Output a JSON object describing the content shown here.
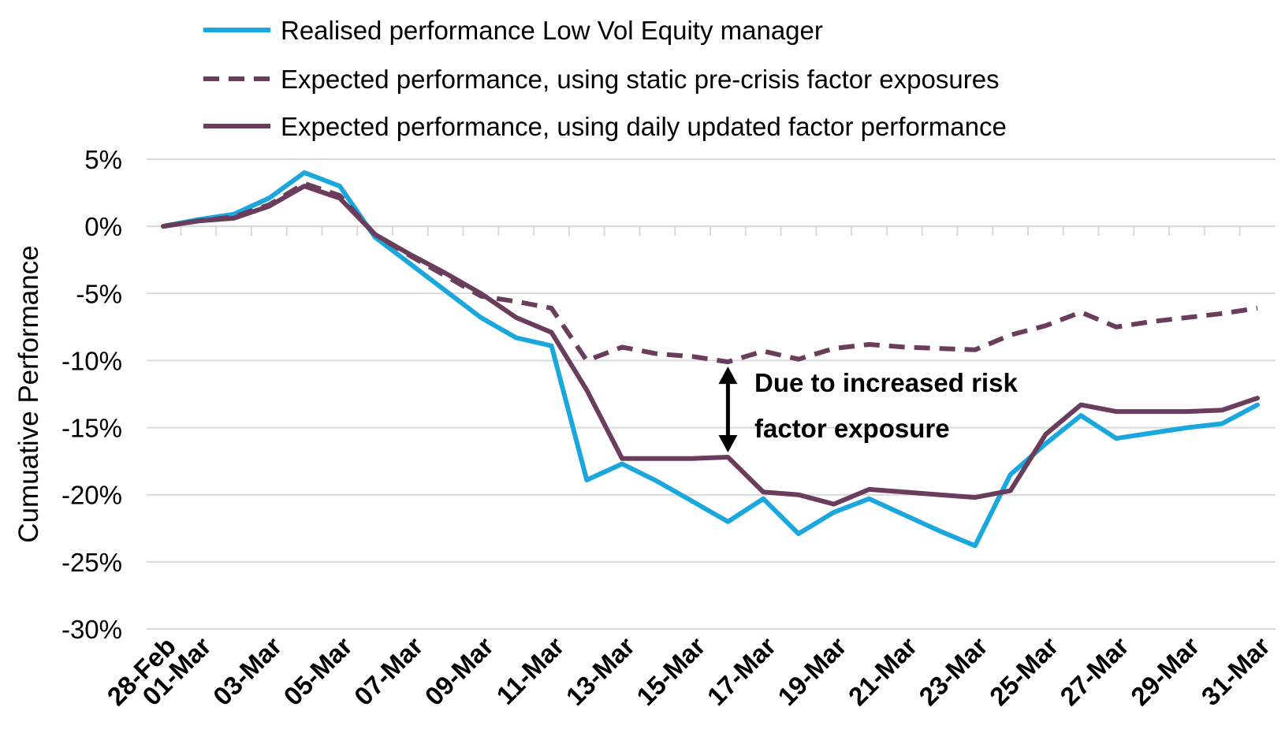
{
  "chart_data": {
    "type": "line",
    "ylabel": "Cumuative Performance",
    "ylim": [
      -30,
      5
    ],
    "yticks": [
      5,
      0,
      -5,
      -10,
      -15,
      -20,
      -25,
      -30
    ],
    "y_tick_labels": [
      "5%",
      "0%",
      "-5%",
      "-10%",
      "-15%",
      "-20%",
      "-25%",
      "-30%"
    ],
    "x_tick_labels": [
      "28-Feb",
      "01-Mar",
      "03-Mar",
      "05-Mar",
      "07-Mar",
      "09-Mar",
      "11-Mar",
      "13-Mar",
      "15-Mar",
      "17-Mar",
      "19-Mar",
      "21-Mar",
      "23-Mar",
      "25-Mar",
      "27-Mar",
      "29-Mar",
      "31-Mar"
    ],
    "x": [
      "28-Feb",
      "01-Mar",
      "02-Mar",
      "03-Mar",
      "04-Mar",
      "05-Mar",
      "06-Mar",
      "07-Mar",
      "08-Mar",
      "09-Mar",
      "10-Mar",
      "11-Mar",
      "12-Mar",
      "13-Mar",
      "14-Mar",
      "15-Mar",
      "16-Mar",
      "17-Mar",
      "18-Mar",
      "19-Mar",
      "20-Mar",
      "21-Mar",
      "22-Mar",
      "23-Mar",
      "24-Mar",
      "25-Mar",
      "26-Mar",
      "27-Mar",
      "28-Mar",
      "29-Mar",
      "30-Mar",
      "31-Mar"
    ],
    "grid": true,
    "legend_position": "top",
    "series": [
      {
        "name": "Realised performance Low Vol Equity manager",
        "color": "#1aa7de",
        "style": "solid",
        "values": [
          0.0,
          0.5,
          0.9,
          2.1,
          4.0,
          3.0,
          -0.8,
          -2.8,
          -4.8,
          -6.8,
          -8.3,
          -8.9,
          -18.9,
          -17.7,
          -19.0,
          -20.5,
          -22.0,
          -20.3,
          -22.9,
          -21.3,
          -20.3,
          -21.5,
          -22.7,
          -23.8,
          -18.5,
          -16.2,
          -14.1,
          -15.8,
          -15.4,
          -15.0,
          -14.7,
          -13.3
        ]
      },
      {
        "name": "Expected performance, using static pre-crisis factor exposures",
        "color": "#6a3d5c",
        "style": "dashed",
        "values": [
          0.0,
          0.4,
          0.7,
          1.6,
          3.2,
          2.3,
          -0.6,
          -2.2,
          -3.7,
          -5.2,
          -5.6,
          -6.1,
          -10.0,
          -9.0,
          -9.5,
          -9.7,
          -10.1,
          -9.3,
          -9.9,
          -9.1,
          -8.8,
          -9.0,
          -9.1,
          -9.2,
          -8.1,
          -7.4,
          -6.4,
          -7.5,
          -7.1,
          -6.8,
          -6.5,
          -6.1
        ]
      },
      {
        "name": "Expected performance, using daily updated factor performance",
        "color": "#6a3d5c",
        "style": "solid",
        "values": [
          0.0,
          0.4,
          0.6,
          1.5,
          3.0,
          2.1,
          -0.6,
          -2.1,
          -3.5,
          -5.0,
          -6.8,
          -7.9,
          -12.2,
          -17.3,
          -17.3,
          -17.3,
          -17.2,
          -19.8,
          -20.0,
          -20.7,
          -19.6,
          -19.8,
          -20.0,
          -20.2,
          -19.7,
          -15.5,
          -13.3,
          -13.8,
          -13.8,
          -13.8,
          -13.7,
          -12.8
        ]
      }
    ],
    "annotation": {
      "lines": [
        "Due to increased risk",
        "factor exposure"
      ],
      "arrow_date": "16-Mar",
      "arrow_from": -10.1,
      "arrow_to": -17.2
    }
  }
}
